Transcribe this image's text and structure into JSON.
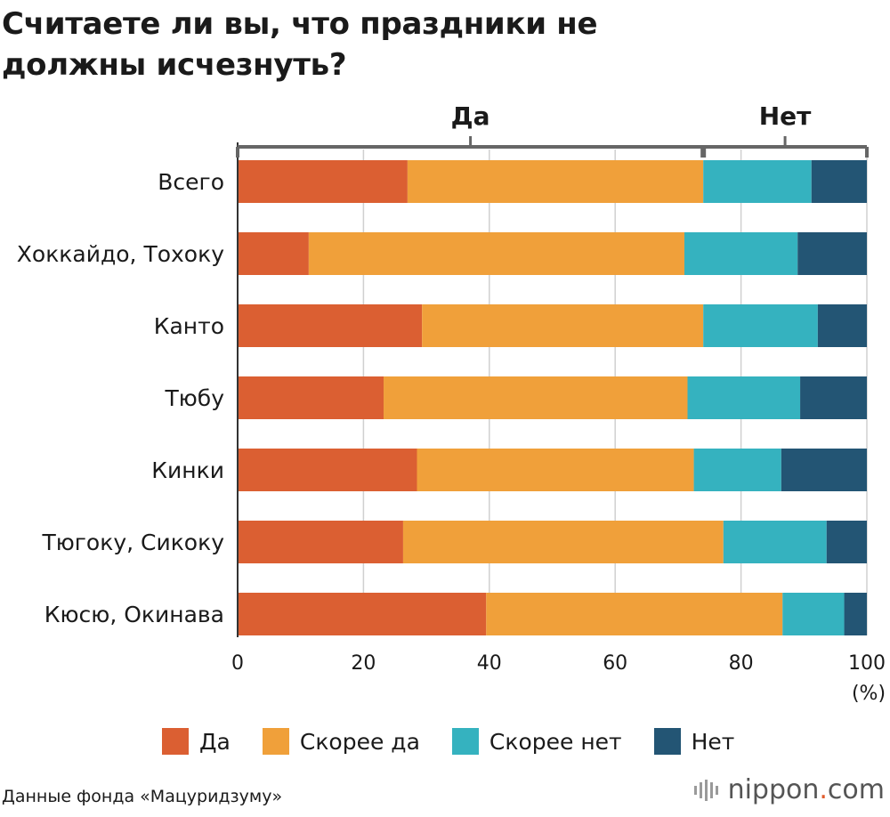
{
  "title": "Считаете ли вы, что праздники не должны исчезнуть?",
  "colors": {
    "yes": "#db5f32",
    "rather_yes": "#f0a03a",
    "rather_no": "#35b2bf",
    "no": "#235574",
    "grid": "#d0d0d0",
    "bracket": "#666666"
  },
  "brackets": {
    "yes_label": "Да",
    "no_label": "Нет",
    "split_value": 74
  },
  "legend": [
    {
      "label": "Да",
      "color": "#db5f32"
    },
    {
      "label": "Скорее да",
      "color": "#f0a03a"
    },
    {
      "label": "Скорее нет",
      "color": "#35b2bf"
    },
    {
      "label": "Нет",
      "color": "#235574"
    }
  ],
  "source": "Данные фонда «Мацуридзуму»",
  "logo": {
    "main": "nippon",
    "dot": ".",
    "suffix": "com"
  },
  "chart_data": {
    "type": "bar",
    "orientation": "horizontal",
    "stacked": true,
    "categories": [
      "Всего",
      "Хоккайдо, Тохоку",
      "Канто",
      "Тюбу",
      "Кинки",
      "Тюгоку, Сикоку",
      "Кюсю, Окинава"
    ],
    "series": [
      {
        "name": "Да",
        "values": [
          27.0,
          11.3,
          29.3,
          23.2,
          28.5,
          26.3,
          39.5
        ]
      },
      {
        "name": "Скорее да",
        "values": [
          47.0,
          59.7,
          44.7,
          48.3,
          44.0,
          50.9,
          47.1
        ]
      },
      {
        "name": "Скорее нет",
        "values": [
          17.2,
          18.0,
          18.2,
          17.9,
          13.9,
          16.4,
          9.8
        ]
      },
      {
        "name": "Нет",
        "values": [
          8.8,
          11.0,
          7.8,
          10.6,
          13.6,
          6.4,
          3.6
        ]
      }
    ],
    "xlim": [
      0,
      100
    ],
    "xticks": [
      0,
      20,
      40,
      60,
      80,
      100
    ],
    "unit_label": "(%)",
    "grid": true
  }
}
